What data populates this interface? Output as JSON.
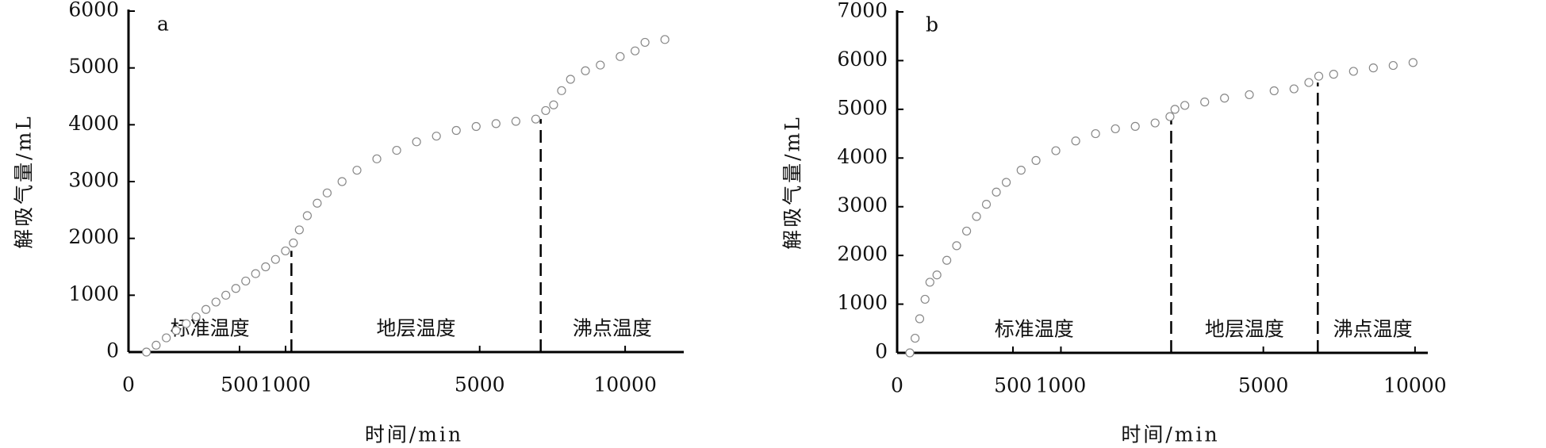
{
  "chart_data": [
    {
      "type": "scatter",
      "title": "a",
      "xlabel": "时间/min",
      "ylabel": "解吸气量/mL",
      "xscale": "sqrt",
      "x": [
        13,
        31,
        58,
        92,
        135,
        185,
        243,
        310,
        384,
        467,
        557,
        655,
        762,
        876,
        999,
        1102,
        1183,
        1296,
        1444,
        1600,
        1849,
        2116,
        2500,
        2916,
        3364,
        3844,
        4356,
        4900,
        5476,
        6084,
        6724,
        7056,
        7327,
        7604,
        7921,
        8464,
        9025,
        9801,
        10404,
        10816,
        11664
      ],
      "values": [
        0,
        120,
        250,
        380,
        500,
        620,
        750,
        880,
        1000,
        1120,
        1250,
        1380,
        1500,
        1630,
        1780,
        1920,
        2150,
        2400,
        2620,
        2800,
        3000,
        3200,
        3400,
        3550,
        3700,
        3800,
        3900,
        3970,
        4020,
        4060,
        4100,
        4250,
        4350,
        4600,
        4800,
        4950,
        5050,
        5200,
        5300,
        5450,
        5500
      ],
      "color": "#888888",
      "xlim": [
        0,
        12500
      ],
      "xticks": [
        0,
        500,
        1000,
        5000,
        10000
      ],
      "ylim": [
        0,
        6000
      ],
      "yticks": [
        0,
        1000,
        2000,
        3000,
        4000,
        5000,
        6000
      ],
      "boundaries": [
        1076,
        6889
      ],
      "regions": [
        "标准温度",
        "地层温度",
        "沸点温度"
      ]
    },
    {
      "type": "scatter",
      "title": "b",
      "xlabel": "时间/min",
      "ylabel": "解吸气量/mL",
      "xscale": "sqrt",
      "x": [
        6,
        12,
        19,
        29,
        40,
        59,
        92,
        132,
        180,
        235,
        297,
        367,
        444,
        573,
        719,
        939,
        1189,
        1468,
        1776,
        2114,
        2481,
        2775,
        2877,
        3086,
        3527,
        3996,
        4625,
        5299,
        5872,
        6320,
        6628,
        7104,
        7765,
        8455,
        9174,
        9923
      ],
      "values": [
        0,
        300,
        700,
        1100,
        1450,
        1600,
        1900,
        2200,
        2500,
        2800,
        3050,
        3300,
        3500,
        3750,
        3950,
        4150,
        4350,
        4500,
        4600,
        4650,
        4720,
        4850,
        5000,
        5080,
        5150,
        5230,
        5300,
        5380,
        5420,
        5550,
        5680,
        5720,
        5780,
        5850,
        5900,
        5960
      ],
      "color": "#888888",
      "xlim": [
        0,
        10500
      ],
      "xticks": [
        0,
        500,
        1000,
        5000,
        10000
      ],
      "ylim": [
        0,
        7000
      ],
      "yticks": [
        0,
        1000,
        2000,
        3000,
        4000,
        5000,
        6000,
        7000
      ],
      "boundaries": [
        2800,
        6597
      ],
      "regions": [
        "标准温度",
        "地层温度",
        "沸点温度"
      ]
    }
  ]
}
